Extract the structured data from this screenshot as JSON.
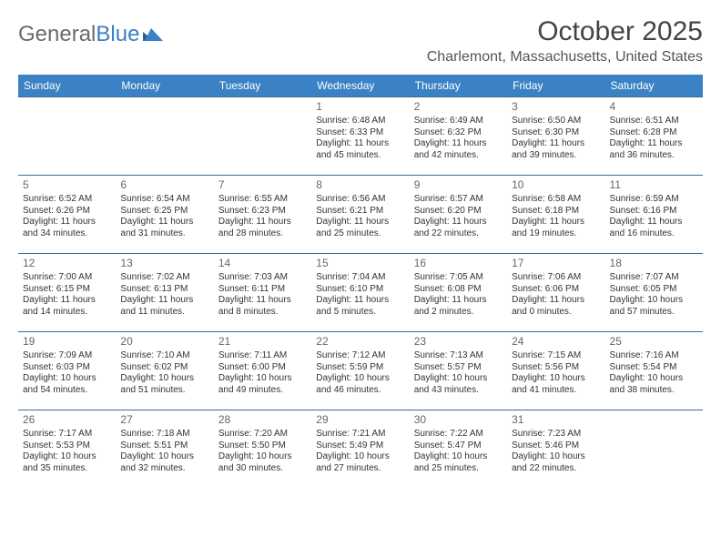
{
  "logo": {
    "text1": "General",
    "text2": "Blue"
  },
  "title": "October 2025",
  "location": "Charlemont, Massachusetts, United States",
  "colors": {
    "header_bg": "#3b82c4",
    "header_text": "#ffffff",
    "row_border": "#3b6a99",
    "logo_gray": "#6b6b6b",
    "logo_blue": "#3b7fc4",
    "title_color": "#444444",
    "text_color": "#333333",
    "background": "#ffffff"
  },
  "day_headers": [
    "Sunday",
    "Monday",
    "Tuesday",
    "Wednesday",
    "Thursday",
    "Friday",
    "Saturday"
  ],
  "weeks": [
    [
      null,
      null,
      null,
      {
        "day": "1",
        "sunrise": "Sunrise: 6:48 AM",
        "sunset": "Sunset: 6:33 PM",
        "daylight": "Daylight: 11 hours and 45 minutes."
      },
      {
        "day": "2",
        "sunrise": "Sunrise: 6:49 AM",
        "sunset": "Sunset: 6:32 PM",
        "daylight": "Daylight: 11 hours and 42 minutes."
      },
      {
        "day": "3",
        "sunrise": "Sunrise: 6:50 AM",
        "sunset": "Sunset: 6:30 PM",
        "daylight": "Daylight: 11 hours and 39 minutes."
      },
      {
        "day": "4",
        "sunrise": "Sunrise: 6:51 AM",
        "sunset": "Sunset: 6:28 PM",
        "daylight": "Daylight: 11 hours and 36 minutes."
      }
    ],
    [
      {
        "day": "5",
        "sunrise": "Sunrise: 6:52 AM",
        "sunset": "Sunset: 6:26 PM",
        "daylight": "Daylight: 11 hours and 34 minutes."
      },
      {
        "day": "6",
        "sunrise": "Sunrise: 6:54 AM",
        "sunset": "Sunset: 6:25 PM",
        "daylight": "Daylight: 11 hours and 31 minutes."
      },
      {
        "day": "7",
        "sunrise": "Sunrise: 6:55 AM",
        "sunset": "Sunset: 6:23 PM",
        "daylight": "Daylight: 11 hours and 28 minutes."
      },
      {
        "day": "8",
        "sunrise": "Sunrise: 6:56 AM",
        "sunset": "Sunset: 6:21 PM",
        "daylight": "Daylight: 11 hours and 25 minutes."
      },
      {
        "day": "9",
        "sunrise": "Sunrise: 6:57 AM",
        "sunset": "Sunset: 6:20 PM",
        "daylight": "Daylight: 11 hours and 22 minutes."
      },
      {
        "day": "10",
        "sunrise": "Sunrise: 6:58 AM",
        "sunset": "Sunset: 6:18 PM",
        "daylight": "Daylight: 11 hours and 19 minutes."
      },
      {
        "day": "11",
        "sunrise": "Sunrise: 6:59 AM",
        "sunset": "Sunset: 6:16 PM",
        "daylight": "Daylight: 11 hours and 16 minutes."
      }
    ],
    [
      {
        "day": "12",
        "sunrise": "Sunrise: 7:00 AM",
        "sunset": "Sunset: 6:15 PM",
        "daylight": "Daylight: 11 hours and 14 minutes."
      },
      {
        "day": "13",
        "sunrise": "Sunrise: 7:02 AM",
        "sunset": "Sunset: 6:13 PM",
        "daylight": "Daylight: 11 hours and 11 minutes."
      },
      {
        "day": "14",
        "sunrise": "Sunrise: 7:03 AM",
        "sunset": "Sunset: 6:11 PM",
        "daylight": "Daylight: 11 hours and 8 minutes."
      },
      {
        "day": "15",
        "sunrise": "Sunrise: 7:04 AM",
        "sunset": "Sunset: 6:10 PM",
        "daylight": "Daylight: 11 hours and 5 minutes."
      },
      {
        "day": "16",
        "sunrise": "Sunrise: 7:05 AM",
        "sunset": "Sunset: 6:08 PM",
        "daylight": "Daylight: 11 hours and 2 minutes."
      },
      {
        "day": "17",
        "sunrise": "Sunrise: 7:06 AM",
        "sunset": "Sunset: 6:06 PM",
        "daylight": "Daylight: 11 hours and 0 minutes."
      },
      {
        "day": "18",
        "sunrise": "Sunrise: 7:07 AM",
        "sunset": "Sunset: 6:05 PM",
        "daylight": "Daylight: 10 hours and 57 minutes."
      }
    ],
    [
      {
        "day": "19",
        "sunrise": "Sunrise: 7:09 AM",
        "sunset": "Sunset: 6:03 PM",
        "daylight": "Daylight: 10 hours and 54 minutes."
      },
      {
        "day": "20",
        "sunrise": "Sunrise: 7:10 AM",
        "sunset": "Sunset: 6:02 PM",
        "daylight": "Daylight: 10 hours and 51 minutes."
      },
      {
        "day": "21",
        "sunrise": "Sunrise: 7:11 AM",
        "sunset": "Sunset: 6:00 PM",
        "daylight": "Daylight: 10 hours and 49 minutes."
      },
      {
        "day": "22",
        "sunrise": "Sunrise: 7:12 AM",
        "sunset": "Sunset: 5:59 PM",
        "daylight": "Daylight: 10 hours and 46 minutes."
      },
      {
        "day": "23",
        "sunrise": "Sunrise: 7:13 AM",
        "sunset": "Sunset: 5:57 PM",
        "daylight": "Daylight: 10 hours and 43 minutes."
      },
      {
        "day": "24",
        "sunrise": "Sunrise: 7:15 AM",
        "sunset": "Sunset: 5:56 PM",
        "daylight": "Daylight: 10 hours and 41 minutes."
      },
      {
        "day": "25",
        "sunrise": "Sunrise: 7:16 AM",
        "sunset": "Sunset: 5:54 PM",
        "daylight": "Daylight: 10 hours and 38 minutes."
      }
    ],
    [
      {
        "day": "26",
        "sunrise": "Sunrise: 7:17 AM",
        "sunset": "Sunset: 5:53 PM",
        "daylight": "Daylight: 10 hours and 35 minutes."
      },
      {
        "day": "27",
        "sunrise": "Sunrise: 7:18 AM",
        "sunset": "Sunset: 5:51 PM",
        "daylight": "Daylight: 10 hours and 32 minutes."
      },
      {
        "day": "28",
        "sunrise": "Sunrise: 7:20 AM",
        "sunset": "Sunset: 5:50 PM",
        "daylight": "Daylight: 10 hours and 30 minutes."
      },
      {
        "day": "29",
        "sunrise": "Sunrise: 7:21 AM",
        "sunset": "Sunset: 5:49 PM",
        "daylight": "Daylight: 10 hours and 27 minutes."
      },
      {
        "day": "30",
        "sunrise": "Sunrise: 7:22 AM",
        "sunset": "Sunset: 5:47 PM",
        "daylight": "Daylight: 10 hours and 25 minutes."
      },
      {
        "day": "31",
        "sunrise": "Sunrise: 7:23 AM",
        "sunset": "Sunset: 5:46 PM",
        "daylight": "Daylight: 10 hours and 22 minutes."
      },
      null
    ]
  ]
}
